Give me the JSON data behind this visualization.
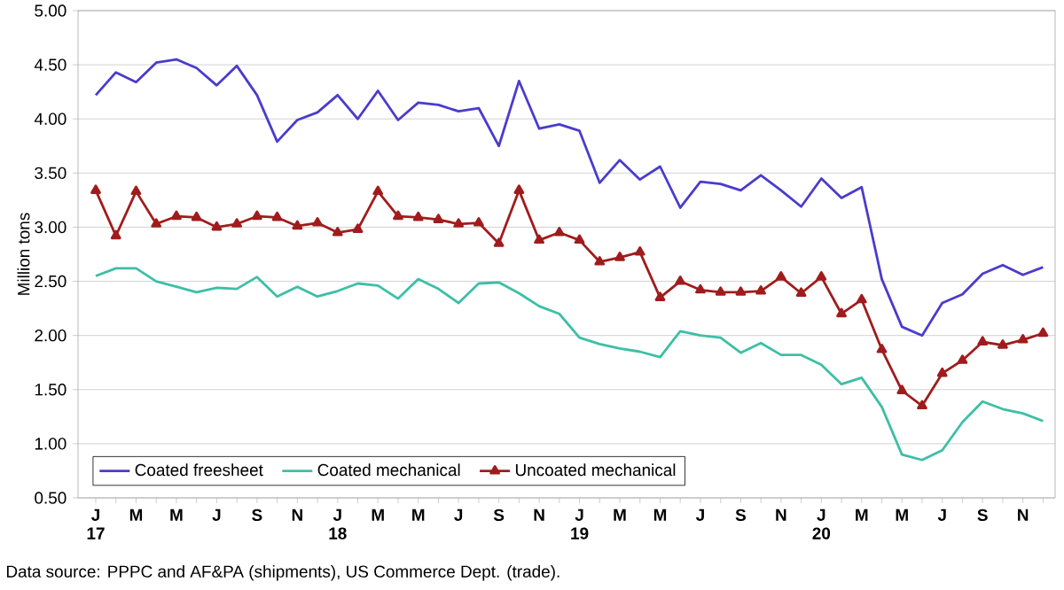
{
  "chart_data": {
    "type": "line",
    "ylabel": "Million tons",
    "categories": [
      "J 17",
      null,
      "M",
      null,
      "M",
      null,
      "J",
      null,
      "S",
      null,
      "N",
      null,
      "J 18",
      null,
      "M",
      null,
      "M",
      null,
      "J",
      null,
      "S",
      null,
      "N",
      null,
      "J 19",
      null,
      "M",
      null,
      "M",
      null,
      "J",
      null,
      "S",
      null,
      "N",
      null,
      "J 20",
      null,
      "M",
      null,
      "M",
      null,
      "J",
      null,
      "S",
      null,
      "N",
      null
    ],
    "ylim": [
      0.5,
      5.0
    ],
    "yticks": [
      {
        "value": 0.5,
        "label": "0.50"
      },
      {
        "value": 1.0,
        "label": "1.00"
      },
      {
        "value": 1.5,
        "label": "1.50"
      },
      {
        "value": 2.0,
        "label": "2.00"
      },
      {
        "value": 2.5,
        "label": "2.50"
      },
      {
        "value": 3.0,
        "label": "3.00"
      },
      {
        "value": 3.5,
        "label": "3.50"
      },
      {
        "value": 4.0,
        "label": "4.00"
      },
      {
        "value": 4.5,
        "label": "4.50"
      },
      {
        "value": 5.0,
        "label": "5.00"
      }
    ],
    "grid": "y",
    "legend": "bottom left",
    "series": [
      {
        "name": "Coated freesheet",
        "color": "#4a3ccc",
        "marker": "none",
        "values": [
          4.22,
          4.43,
          4.34,
          4.52,
          4.55,
          4.47,
          4.31,
          4.49,
          4.22,
          3.79,
          3.99,
          4.06,
          4.22,
          4.0,
          4.26,
          3.99,
          4.15,
          4.13,
          4.07,
          4.1,
          3.75,
          4.35,
          3.91,
          3.95,
          3.89,
          3.41,
          3.62,
          3.44,
          3.56,
          3.18,
          3.42,
          3.4,
          3.34,
          3.48,
          3.34,
          3.19,
          3.45,
          3.27,
          3.37,
          2.52,
          2.08,
          2.0,
          2.3,
          2.38,
          2.57,
          2.65,
          2.56,
          2.63
        ]
      },
      {
        "name": "Coated mechanical",
        "color": "#3dbfa6",
        "marker": "none",
        "values": [
          2.55,
          2.62,
          2.62,
          2.5,
          2.45,
          2.4,
          2.44,
          2.43,
          2.54,
          2.36,
          2.45,
          2.36,
          2.41,
          2.48,
          2.46,
          2.34,
          2.52,
          2.43,
          2.3,
          2.48,
          2.49,
          2.39,
          2.27,
          2.2,
          1.98,
          1.92,
          1.88,
          1.85,
          1.8,
          2.04,
          2.0,
          1.98,
          1.84,
          1.93,
          1.82,
          1.82,
          1.73,
          1.55,
          1.61,
          1.34,
          0.9,
          0.85,
          0.94,
          1.2,
          1.39,
          1.32,
          1.28,
          1.21
        ]
      },
      {
        "name": "Uncoated mechanical",
        "color": "#a01c1c",
        "marker": "triangle",
        "values": [
          3.34,
          2.92,
          3.33,
          3.03,
          3.1,
          3.09,
          3.0,
          3.03,
          3.1,
          3.09,
          3.01,
          3.04,
          2.95,
          2.98,
          3.33,
          3.1,
          3.09,
          3.07,
          3.03,
          3.04,
          2.85,
          3.34,
          2.88,
          2.95,
          2.88,
          2.68,
          2.72,
          2.77,
          2.35,
          2.5,
          2.42,
          2.4,
          2.4,
          2.41,
          2.54,
          2.39,
          2.54,
          2.2,
          2.33,
          1.87,
          1.49,
          1.35,
          1.65,
          1.77,
          1.94,
          1.91,
          1.96,
          2.02
        ]
      }
    ],
    "annotations": [
      "Data source: PPPC and AF&PA (shipments), US Commerce Dept. (trade)."
    ]
  }
}
